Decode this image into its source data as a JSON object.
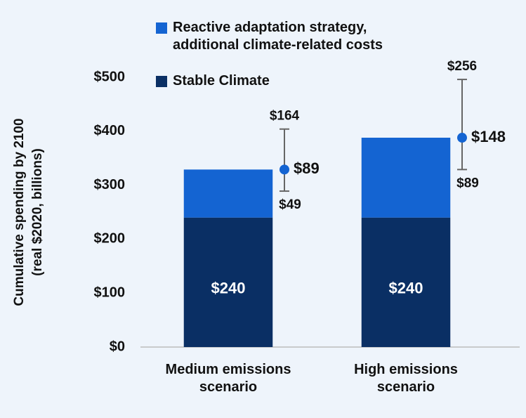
{
  "chart_data": {
    "type": "stacked_bar",
    "ylabel": [
      "Cumulative spending by 2100",
      "(real $2020, billions)"
    ],
    "categories": [
      "Medium emissions scenario",
      "High emissions scenario"
    ],
    "series": [
      {
        "name": "Stable Climate",
        "color": "#0a2f64",
        "values": [
          240,
          240
        ],
        "value_labels": [
          "$240",
          "$240"
        ]
      },
      {
        "name": "Reactive adaptation strategy, additional climate-related costs",
        "color": "#1464d2",
        "values": [
          89,
          148
        ],
        "value_labels": [
          "$89",
          "$148"
        ],
        "error_low": [
          49,
          89
        ],
        "error_low_labels": [
          "$49",
          "$89"
        ],
        "error_high": [
          164,
          256
        ],
        "error_high_labels": [
          "$164",
          "$256"
        ]
      }
    ],
    "ylim": [
      0,
      500
    ],
    "yticks": [
      {
        "value": 0,
        "label": "$0"
      },
      {
        "value": 100,
        "label": "$100"
      },
      {
        "value": 200,
        "label": "$200"
      },
      {
        "value": 300,
        "label": "$300"
      },
      {
        "value": 400,
        "label": "$400"
      },
      {
        "value": 500,
        "label": "$500"
      }
    ]
  }
}
